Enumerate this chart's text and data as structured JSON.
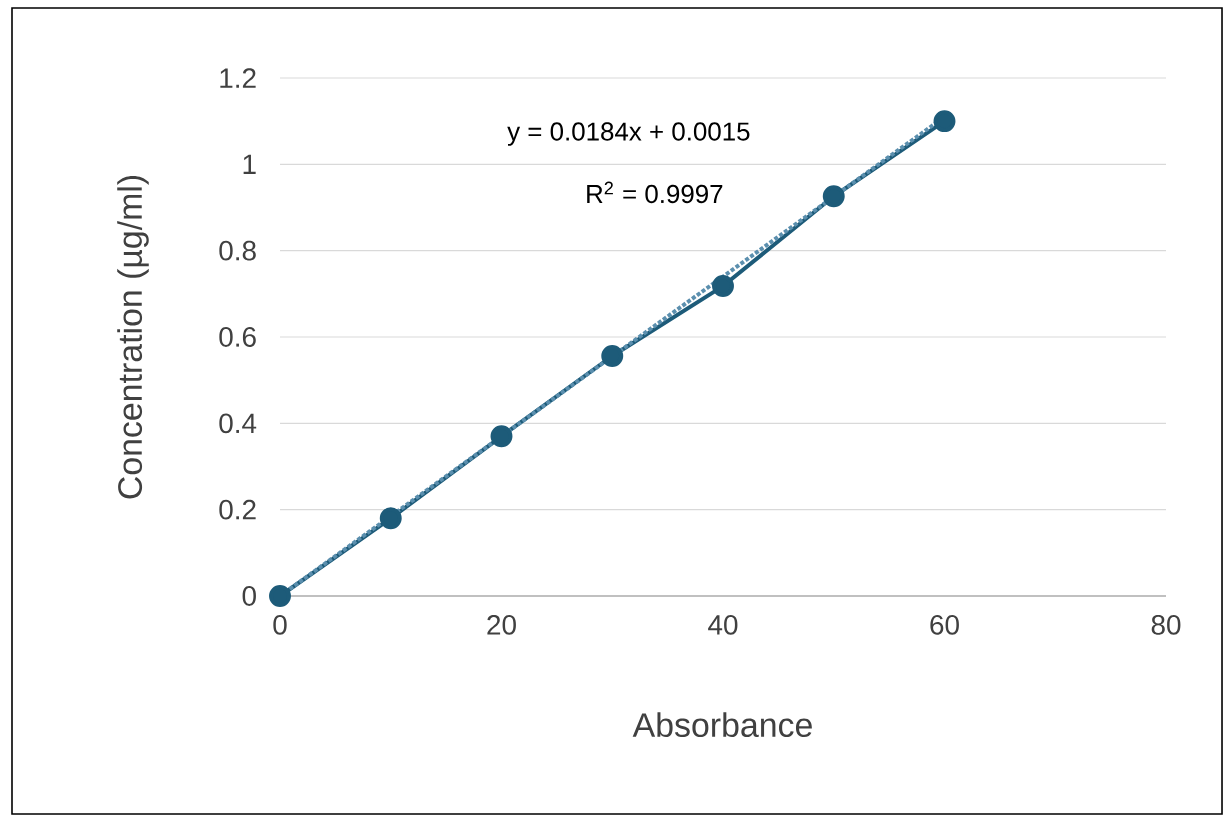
{
  "chart_data": {
    "type": "line",
    "xlabel": "Absorbance",
    "ylabel": "Concentration (µg/ml)",
    "x": [
      0,
      10,
      20,
      30,
      40,
      50,
      60
    ],
    "series": [
      {
        "color": "#1d5b79",
        "marker": "circle",
        "line_style": "solid",
        "values": [
          0,
          0.18,
          0.37,
          0.556,
          0.718,
          0.926,
          1.1
        ]
      },
      {
        "color": "#5b8fae",
        "marker": "none",
        "line_style": "dotted",
        "x": [
          0,
          60
        ],
        "values": [
          0,
          1.11
        ]
      }
    ],
    "annotations": [
      "y = 0.0184x + 0.0015",
      "R$^{2}$ = 0.9997"
    ],
    "xlim": [
      0,
      80
    ],
    "ylim": [
      0,
      1.2
    ],
    "xticks": [
      0,
      20,
      40,
      60,
      80
    ],
    "yticks": [
      0,
      0.2,
      0.4,
      0.6,
      0.8,
      1,
      1.2
    ],
    "grid": "y"
  }
}
